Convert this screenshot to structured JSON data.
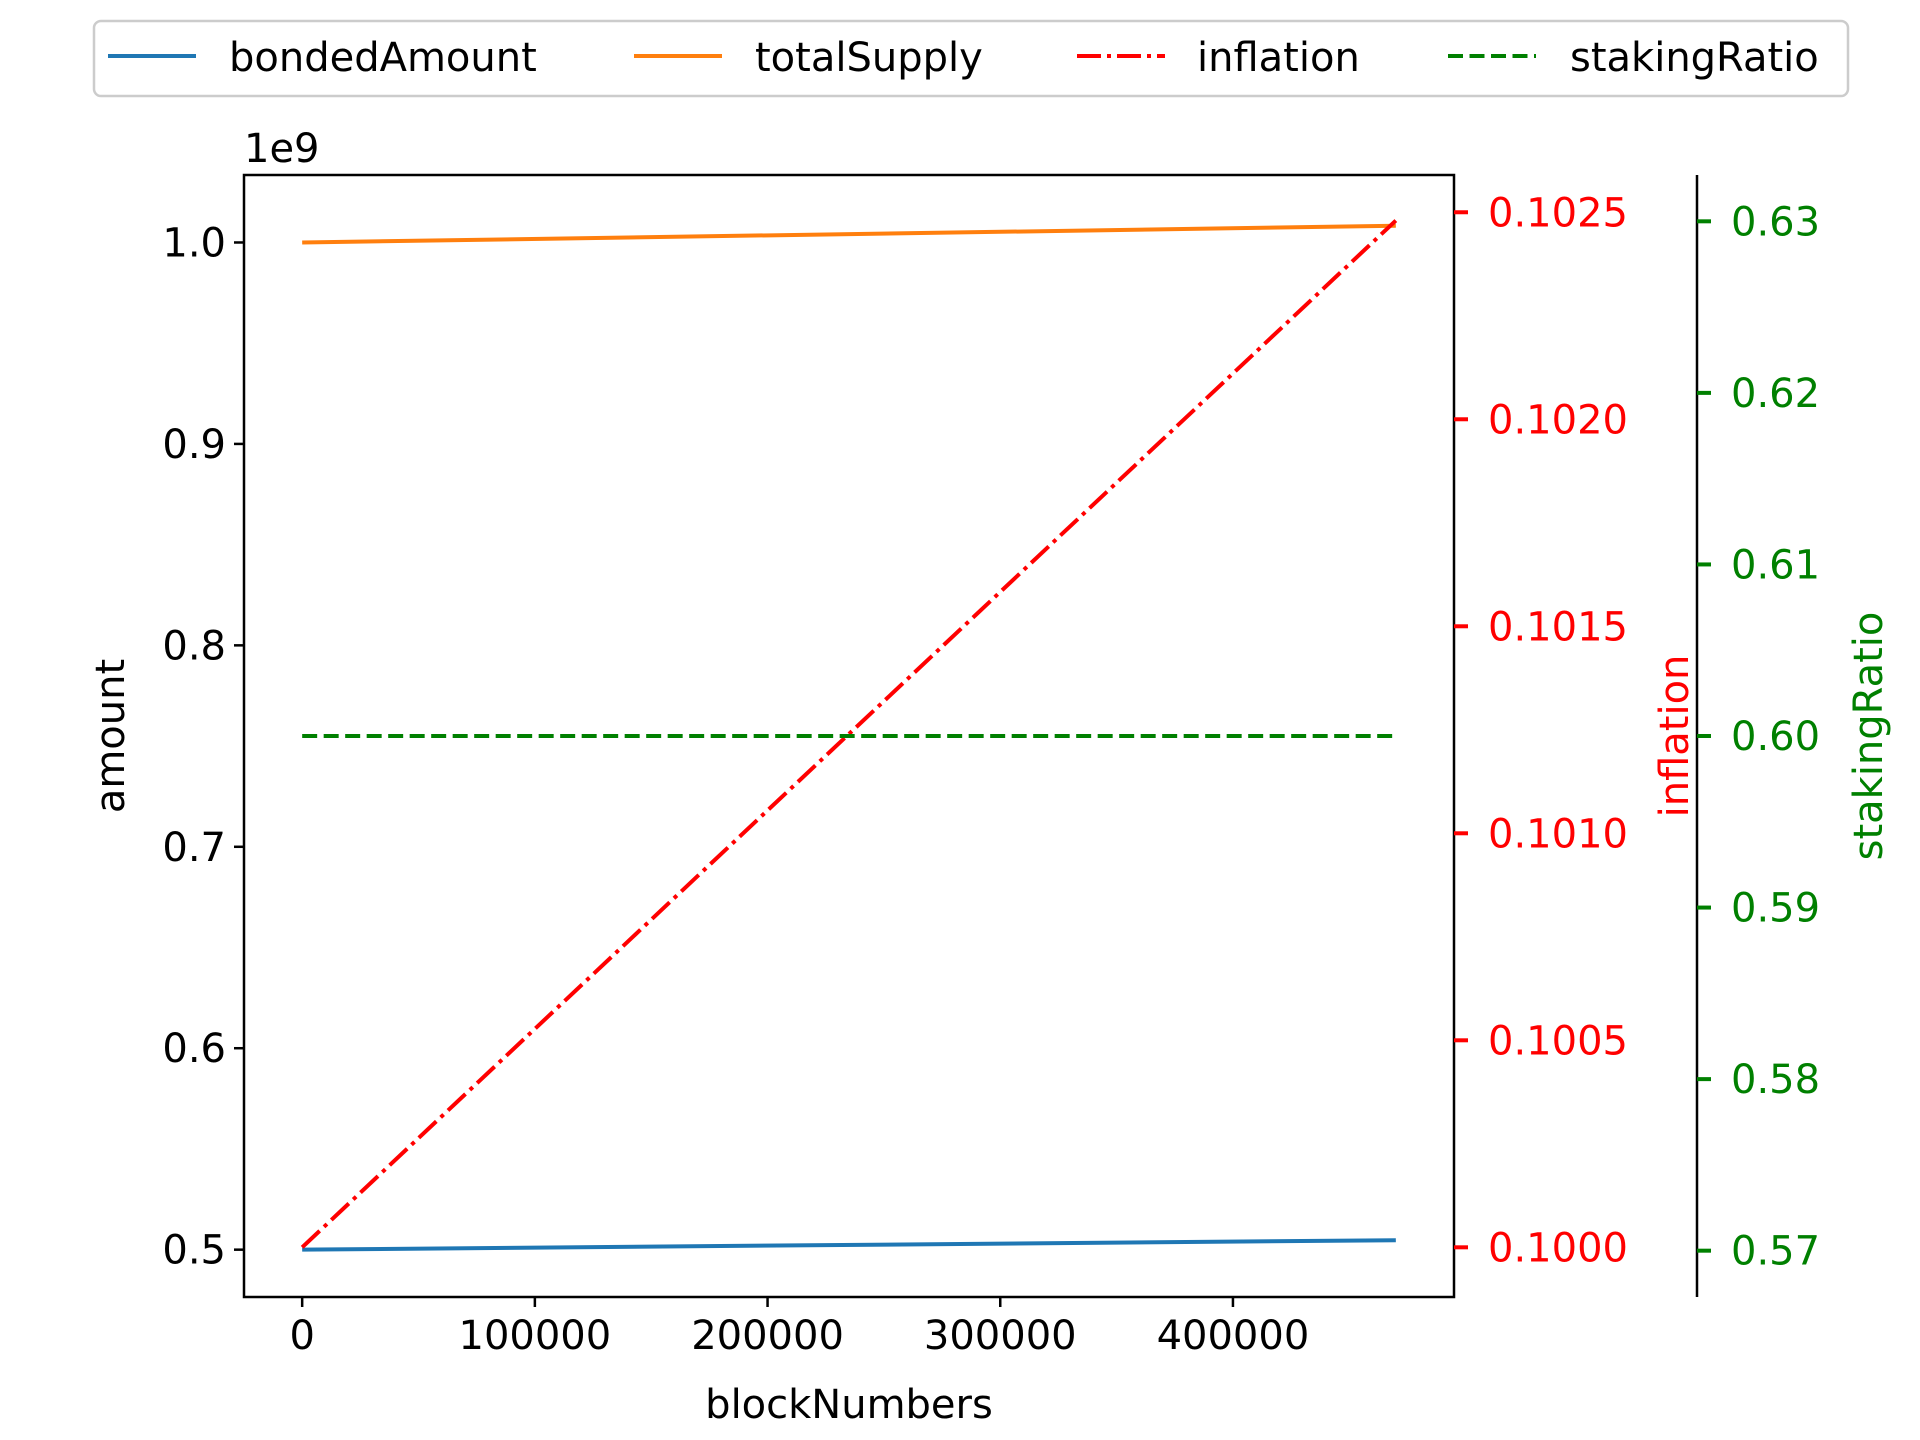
{
  "chart_data": {
    "type": "line",
    "x": [
      0,
      470000
    ],
    "xlabel": "blockNumbers",
    "x_ticks": [
      "0",
      "100000",
      "200000",
      "300000",
      "400000"
    ],
    "xlim": [
      -25000,
      495000
    ],
    "legend_placement": "top-center",
    "grid": false,
    "axes": {
      "left": {
        "label": "amount",
        "offset_text": "1e9",
        "ylim": [
          0.4765,
          1.0335
        ],
        "ticks": [
          "0.5",
          "0.6",
          "0.7",
          "0.8",
          "0.9",
          "1.0"
        ],
        "color": "#000000"
      },
      "right_inflation": {
        "label": "inflation",
        "ylim": [
          0.09988,
          0.10259
        ],
        "ticks": [
          "0.1000",
          "0.1005",
          "0.1010",
          "0.1015",
          "0.1020",
          "0.1025"
        ],
        "color": "#ff0000"
      },
      "right_staking": {
        "label": "stakingRatio",
        "ylim": [
          0.5673,
          0.6327
        ],
        "ticks": [
          "0.57",
          "0.58",
          "0.59",
          "0.60",
          "0.61",
          "0.62",
          "0.63"
        ],
        "color": "#008000"
      }
    },
    "series": [
      {
        "name": "bondedAmount",
        "axis": "left",
        "color": "#1f77b4",
        "dash": "solid",
        "x": [
          0,
          470000
        ],
        "y": [
          0.5,
          0.5047
        ]
      },
      {
        "name": "totalSupply",
        "axis": "left",
        "color": "#ff7f0e",
        "dash": "solid",
        "x": [
          0,
          470000
        ],
        "y": [
          1.0,
          1.0083
        ]
      },
      {
        "name": "inflation",
        "axis": "right_inflation",
        "color": "#ff0000",
        "dash": "dashdot",
        "x": [
          0,
          470000
        ],
        "y": [
          0.1,
          0.10248
        ]
      },
      {
        "name": "stakingRatio",
        "axis": "right_staking",
        "color": "#008000",
        "dash": "dashed",
        "x": [
          0,
          470000
        ],
        "y": [
          0.6,
          0.6
        ]
      }
    ]
  }
}
